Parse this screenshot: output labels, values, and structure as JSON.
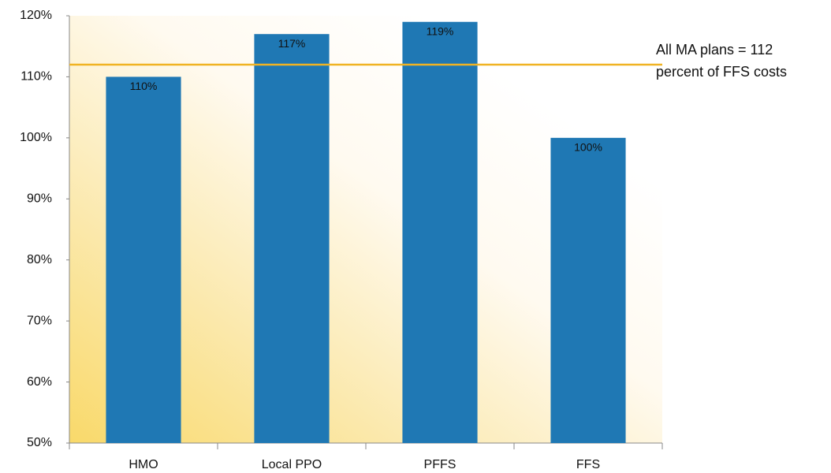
{
  "chart_data": {
    "type": "bar",
    "categories": [
      "HMO",
      "Local PPO",
      "PFFS",
      "FFS"
    ],
    "values": [
      110,
      117,
      119,
      100
    ],
    "value_labels": [
      "110%",
      "117%",
      "119%",
      "100%"
    ],
    "color": "#1f78b4",
    "ylim": [
      50,
      120
    ],
    "yticks": [
      {
        "value": 50,
        "label": "50%"
      },
      {
        "value": 60,
        "label": "60%"
      },
      {
        "value": 70,
        "label": "70%"
      },
      {
        "value": 80,
        "label": "80%"
      },
      {
        "value": 90,
        "label": "90%"
      },
      {
        "value": 100,
        "label": "100%"
      },
      {
        "value": 110,
        "label": "110%"
      },
      {
        "value": 120,
        "label": "120%"
      }
    ],
    "reference_line": {
      "value": 112,
      "color": "#f0b323",
      "label": [
        "All MA plans = 112",
        "percent of FFS costs"
      ]
    }
  }
}
